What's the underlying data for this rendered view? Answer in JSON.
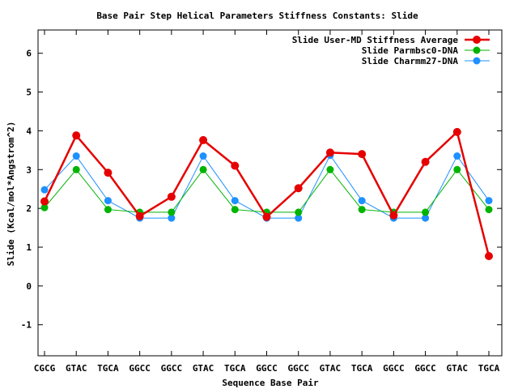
{
  "chart_data": {
    "type": "line",
    "title": "Base Pair Step Helical Parameters Stiffness Constants: Slide",
    "xlabel": "Sequence Base Pair",
    "ylabel": "Slide (Kcal/mol*Angstrom^2)",
    "categories": [
      "CGCG",
      "GTAC",
      "TGCA",
      "GGCC",
      "GGCC",
      "GTAC",
      "TGCA",
      "GGCC",
      "GGCC",
      "GTAC",
      "TGCA",
      "GGCC",
      "GGCC",
      "GTAC",
      "TGCA"
    ],
    "ylim": [
      -1.8,
      6.6
    ],
    "yticks": [
      -1,
      0,
      1,
      2,
      3,
      4,
      5,
      6
    ],
    "legend_position": "top-right",
    "grid": false,
    "series": [
      {
        "name": "Slide User-MD Stiffness Average",
        "color": "#e60000",
        "values": [
          2.18,
          3.88,
          2.92,
          1.8,
          2.3,
          3.76,
          3.1,
          1.78,
          2.52,
          3.44,
          3.4,
          1.82,
          3.2,
          3.97,
          0.77
        ]
      },
      {
        "name": "Slide Parmbsc0-DNA",
        "color": "#00b400",
        "values": [
          2.02,
          3.0,
          1.97,
          1.9,
          1.9,
          3.0,
          1.97,
          1.9,
          1.9,
          3.0,
          1.97,
          1.9,
          1.9,
          3.0,
          1.97
        ]
      },
      {
        "name": "Slide Charmm27-DNA",
        "color": "#1e90ff",
        "values": [
          2.48,
          3.35,
          2.2,
          1.75,
          1.75,
          3.35,
          2.2,
          1.75,
          1.75,
          3.37,
          2.2,
          1.75,
          1.75,
          3.35,
          2.2
        ]
      }
    ]
  }
}
